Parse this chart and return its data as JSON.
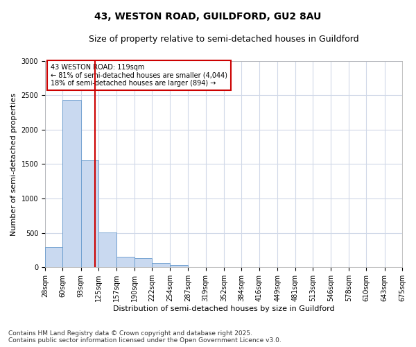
{
  "title_line1": "43, WESTON ROAD, GUILDFORD, GU2 8AU",
  "title_line2": "Size of property relative to semi-detached houses in Guildford",
  "xlabel": "Distribution of semi-detached houses by size in Guildford",
  "ylabel": "Number of semi-detached properties",
  "footer_line1": "Contains HM Land Registry data © Crown copyright and database right 2025.",
  "footer_line2": "Contains public sector information licensed under the Open Government Licence v3.0.",
  "annotation_title": "43 WESTON ROAD: 119sqm",
  "annotation_line2": "← 81% of semi-detached houses are smaller (4,044)",
  "annotation_line3": "18% of semi-detached houses are larger (894) →",
  "property_size": 119,
  "bin_edges": [
    28,
    60,
    93,
    125,
    157,
    190,
    222,
    254,
    287,
    319,
    352,
    384,
    416,
    449,
    481,
    513,
    546,
    578,
    610,
    643,
    675
  ],
  "bin_labels": [
    "28sqm",
    "60sqm",
    "93sqm",
    "125sqm",
    "157sqm",
    "190sqm",
    "222sqm",
    "254sqm",
    "287sqm",
    "319sqm",
    "352sqm",
    "384sqm",
    "416sqm",
    "449sqm",
    "481sqm",
    "513sqm",
    "546sqm",
    "578sqm",
    "610sqm",
    "643sqm",
    "675sqm"
  ],
  "bar_heights": [
    290,
    2430,
    1560,
    510,
    150,
    130,
    60,
    30,
    0,
    0,
    0,
    0,
    0,
    0,
    0,
    0,
    0,
    0,
    0,
    0
  ],
  "bar_color": "#c9d9f0",
  "bar_edge_color": "#6699cc",
  "vline_color": "#cc0000",
  "vline_x": 119,
  "ylim": [
    0,
    3000
  ],
  "yticks": [
    0,
    500,
    1000,
    1500,
    2000,
    2500,
    3000
  ],
  "bg_color": "#ffffff",
  "plot_bg_color": "#ffffff",
  "grid_color": "#d0d8e8",
  "annotation_box_color": "#cc0000",
  "title_fontsize": 10,
  "subtitle_fontsize": 9,
  "axis_label_fontsize": 8,
  "tick_fontsize": 7,
  "footer_fontsize": 6.5
}
